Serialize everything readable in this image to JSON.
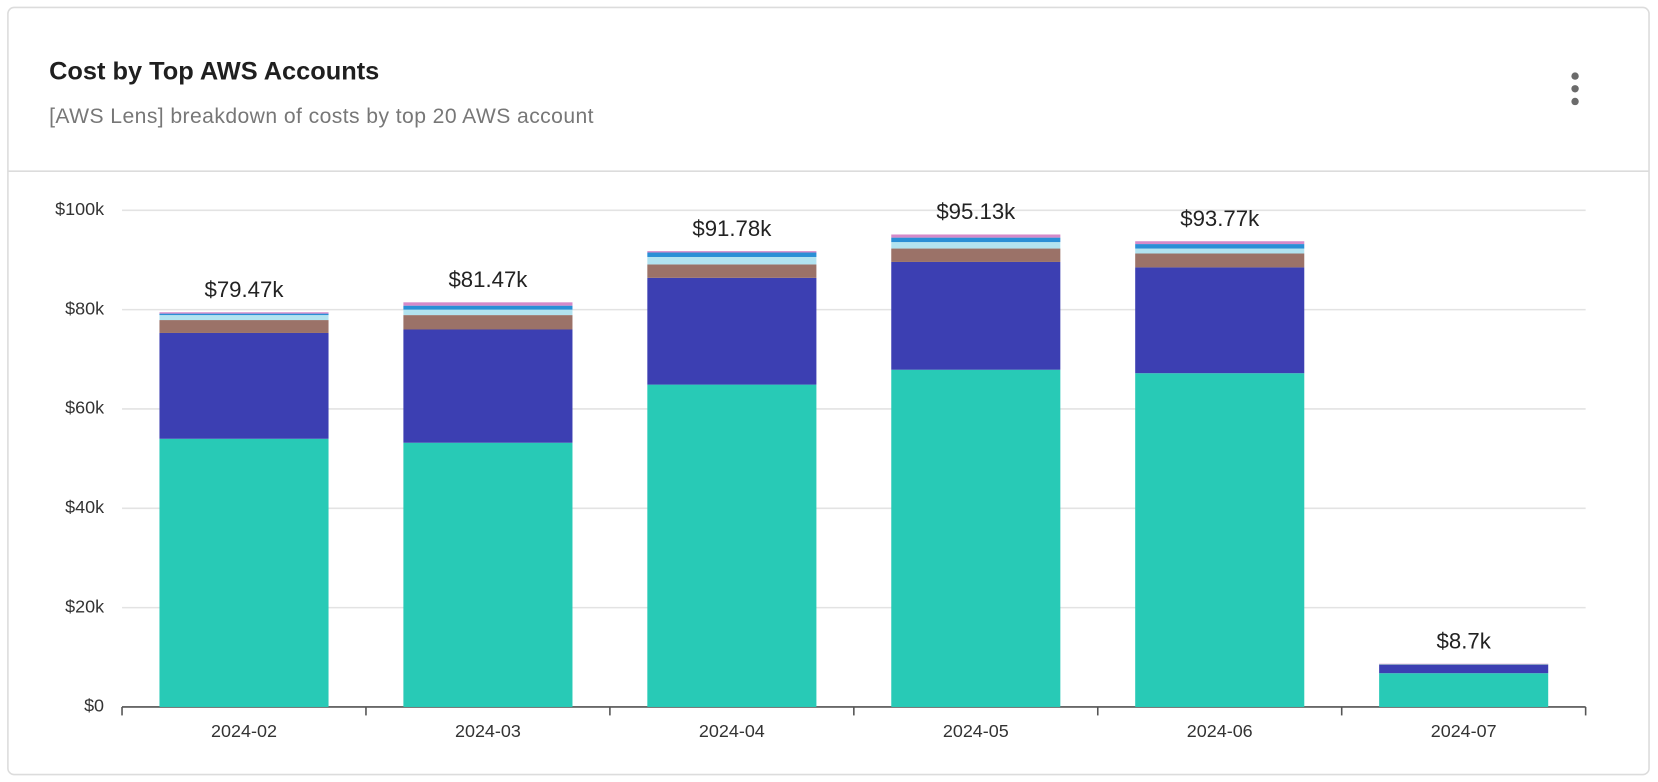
{
  "chart_data": {
    "type": "stacked-bar",
    "title": "Cost by Top AWS Accounts",
    "subtitle": "[AWS Lens] breakdown of costs by top 20 AWS account",
    "categories": [
      "2024-02",
      "2024-03",
      "2024-04",
      "2024-05",
      "2024-06",
      "2024-07"
    ],
    "series": [
      {
        "color": "#28cab6",
        "values": [
          54000,
          53200,
          64900,
          67900,
          67200,
          6800
        ]
      },
      {
        "color": "#3c3fb2",
        "values": [
          21300,
          22800,
          21500,
          21700,
          21300,
          1700
        ]
      },
      {
        "color": "#9b7268",
        "values": [
          2600,
          2900,
          2700,
          2700,
          2800,
          50
        ]
      },
      {
        "color": "#b2e3f0",
        "values": [
          1000,
          1100,
          1500,
          1300,
          1000,
          50
        ]
      },
      {
        "color": "#2a8fd6",
        "values": [
          300,
          800,
          900,
          900,
          900,
          50
        ]
      },
      {
        "color": "#d58ac9",
        "values": [
          270,
          670,
          280,
          630,
          570,
          50
        ]
      }
    ],
    "totals": [
      79470,
      81470,
      91780,
      95130,
      93770,
      8700
    ],
    "total_labels": [
      "$79.47k",
      "$81.47k",
      "$91.78k",
      "$95.13k",
      "$93.77k",
      "$8.7k"
    ],
    "ylim": [
      0,
      100000
    ],
    "yticks": [
      {
        "value": 0,
        "label": "$0"
      },
      {
        "value": 20000,
        "label": "$20k"
      },
      {
        "value": 40000,
        "label": "$40k"
      },
      {
        "value": 60000,
        "label": "$60k"
      },
      {
        "value": 80000,
        "label": "$80k"
      },
      {
        "value": 100000,
        "label": "$100k"
      }
    ],
    "grid": true
  }
}
